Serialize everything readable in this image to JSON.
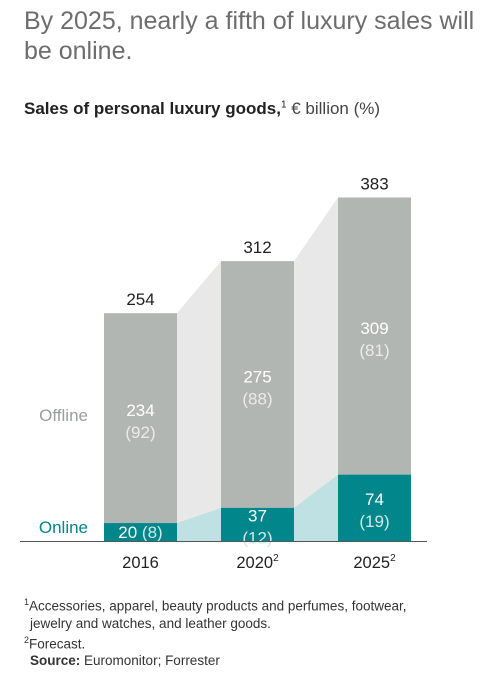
{
  "headline": "By 2025, nearly a fifth of luxury sales will be online.",
  "subtitle": {
    "main": "Sales of personal luxury goods,",
    "marker": "1",
    "unit": " € billion (%)"
  },
  "chart_data": {
    "type": "bar",
    "stacked": true,
    "categories": [
      "2016",
      "2020",
      "2025"
    ],
    "category_markers": [
      "",
      "2",
      "2"
    ],
    "totals": [
      254,
      312,
      383
    ],
    "series": [
      {
        "name": "Online",
        "values": [
          20,
          37,
          74
        ],
        "shares": [
          8,
          12,
          19
        ],
        "color": "#00868b"
      },
      {
        "name": "Offline",
        "values": [
          234,
          275,
          309
        ],
        "shares": [
          92,
          88,
          81
        ],
        "color": "#b2b6b3"
      }
    ],
    "connector_colors": {
      "offline": "#e8e8e8",
      "online": "#bfe1e3"
    },
    "legend_placement": "left",
    "grid": false
  },
  "footnotes": [
    {
      "marker": "1",
      "text": "Accessories, apparel, beauty products and perfumes, footwear,"
    },
    {
      "marker": "",
      "text": "jewelry and watches, and leather goods."
    },
    {
      "marker": "2",
      "text": "Forecast."
    }
  ],
  "source": {
    "label": "Source:",
    "text": "Euromonitor; Forrester"
  }
}
